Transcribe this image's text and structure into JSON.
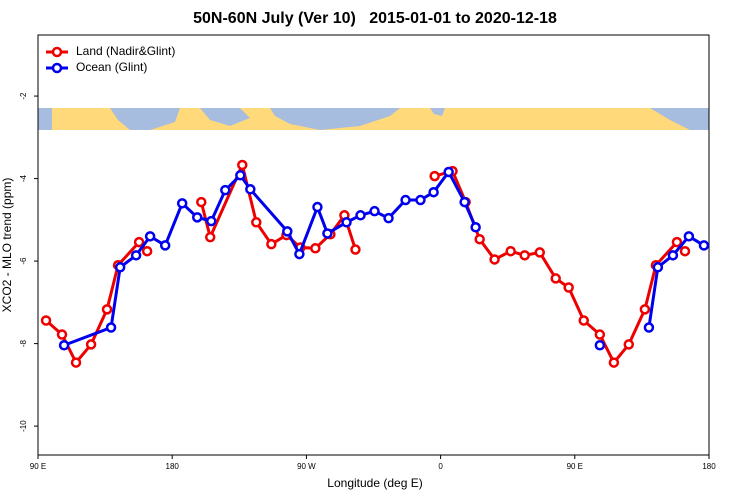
{
  "chart_data": {
    "type": "line",
    "title": "50N-60N July (Ver 10)   2015-01-01 to 2020-12-18",
    "x_label": "Longitude (deg E)",
    "y_label": "XCO2 - MLO trend (ppm)",
    "xlim": [
      90,
      540
    ],
    "ylim": [
      -10.7,
      -0.52
    ],
    "xticks": [
      {
        "value": 90,
        "label": "90 E"
      },
      180,
      {
        "value": 270,
        "label": "90 W"
      },
      {
        "value": 360,
        "label": "0"
      },
      {
        "value": 450,
        "label": "90 E"
      },
      {
        "value": 540,
        "label": "180"
      }
    ],
    "yticks": [
      -2,
      -4,
      -6,
      -8,
      -10
    ],
    "legend": "top-left",
    "series": [
      {
        "name": "Land (Nadir&Glint)",
        "color": "#ee0000",
        "x": [
          95.4,
          106.1,
          115.5,
          125.6,
          136.3,
          143.7,
          157.8,
          163.2,
          null,
          199.5,
          205.5,
          227.0,
          236.4,
          246.5,
          256.6,
          266.0,
          276.0,
          286.1,
          295.5,
          302.9,
          null,
          356.0,
          368.0,
          376.8,
          386.2,
          396.2,
          407.0,
          416.4,
          426.5,
          437.2,
          445.9,
          456.0,
          466.8,
          476.2,
          486.2,
          497.0,
          504.4,
          518.5,
          523.9
        ],
        "values": [
          -7.44,
          -7.78,
          -8.46,
          -8.02,
          -7.17,
          -6.1,
          -5.54,
          -5.76,
          null,
          -4.57,
          -5.42,
          -3.67,
          -5.06,
          -5.59,
          -5.37,
          -5.67,
          -5.69,
          -5.35,
          -4.89,
          -5.72,
          null,
          -3.94,
          -3.82,
          -4.57,
          -5.47,
          -5.96,
          -5.76,
          -5.86,
          -5.79,
          -6.42,
          -6.64,
          -7.44,
          -7.78,
          -8.46,
          -8.02,
          -7.17,
          -6.1,
          -5.54,
          -5.76
        ]
      },
      {
        "name": "Ocean (Glint)",
        "color": "#0000ee",
        "x": [
          107.5,
          139.0,
          145.1,
          155.8,
          165.2,
          175.3,
          186.7,
          196.8,
          206.2,
          215.6,
          225.7,
          232.4,
          257.2,
          265.3,
          277.4,
          284.1,
          296.9,
          306.3,
          315.7,
          325.1,
          336.5,
          346.5,
          355.3,
          365.4,
          376.1,
          383.5,
          null,
          466.8,
          null,
          499.7,
          505.7,
          515.8,
          526.5,
          536.6
        ],
        "values": [
          -8.04,
          -7.61,
          -6.15,
          -5.86,
          -5.4,
          -5.62,
          -4.6,
          -4.94,
          -5.03,
          -4.28,
          -3.92,
          -4.26,
          -5.28,
          -5.83,
          -4.69,
          -5.33,
          -5.06,
          -4.89,
          -4.79,
          -4.96,
          -4.52,
          -4.52,
          -4.33,
          -3.84,
          -4.57,
          -5.18,
          null,
          -8.04,
          null,
          -7.61,
          -6.15,
          -5.86,
          -5.4,
          -5.62
        ]
      }
    ]
  }
}
